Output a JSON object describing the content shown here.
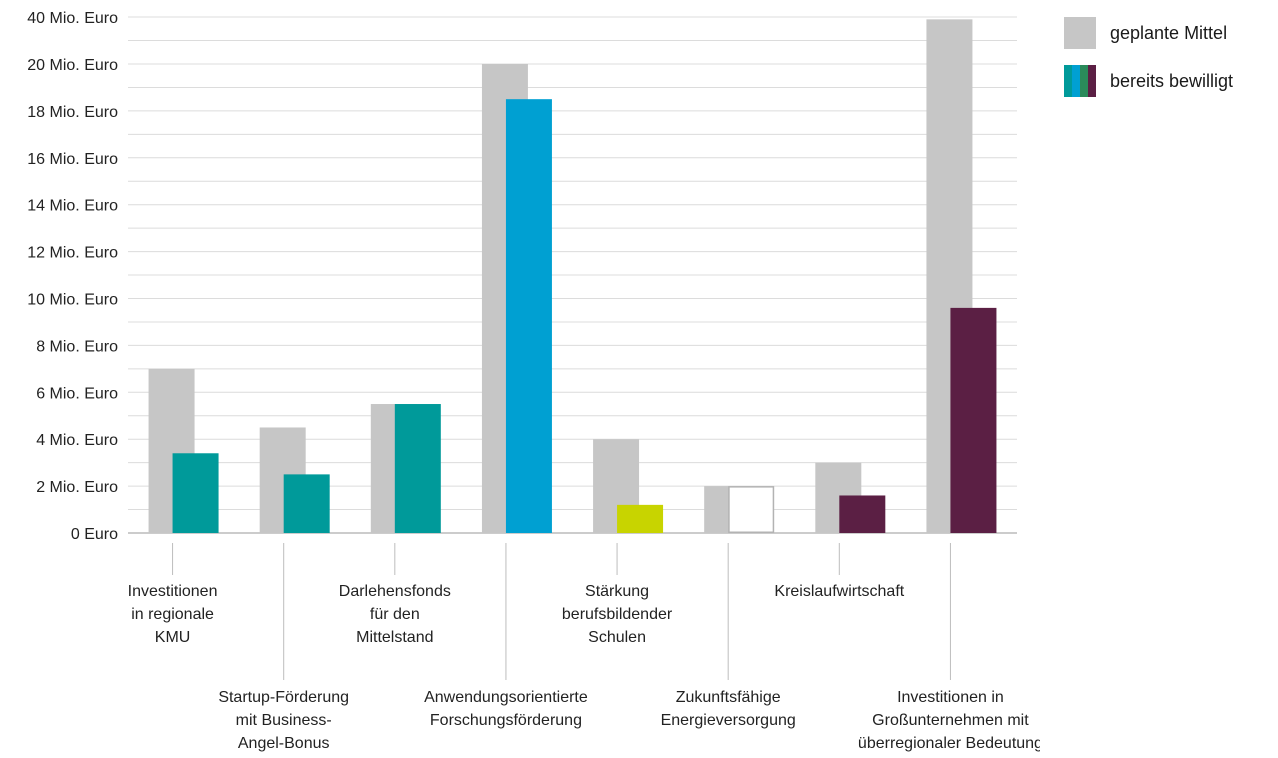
{
  "legend": {
    "items": [
      {
        "label": "geplante Mittel",
        "color": "#c6c6c6"
      },
      {
        "label": "bereits bewilligt",
        "colors": [
          "#009a9a",
          "#00a0d2",
          "#2a8a5a",
          "#5b1f44"
        ]
      }
    ]
  },
  "chart_data": {
    "type": "bar",
    "title": "",
    "xlabel": "",
    "ylabel": "",
    "y_ticks": [
      {
        "value": 0,
        "label": "0 Euro"
      },
      {
        "value": 2,
        "label": "2 Mio. Euro"
      },
      {
        "value": 4,
        "label": "4 Mio. Euro"
      },
      {
        "value": 6,
        "label": "6 Mio. Euro"
      },
      {
        "value": 8,
        "label": "8 Mio. Euro"
      },
      {
        "value": 10,
        "label": "10 Mio. Euro"
      },
      {
        "value": 12,
        "label": "12 Mio. Euro"
      },
      {
        "value": 14,
        "label": "14 Mio. Euro"
      },
      {
        "value": 16,
        "label": "16 Mio. Euro"
      },
      {
        "value": 18,
        "label": "18 Mio. Euro"
      },
      {
        "value": 20,
        "label": "20 Mio. Euro"
      },
      {
        "value": 40,
        "label": "40 Mio. Euro"
      }
    ],
    "categories": [
      {
        "lines": [
          "Investitionen",
          "in regionale",
          "KMU"
        ],
        "row": 0
      },
      {
        "lines": [
          "Startup-Förderung",
          "mit Business-",
          "Angel-Bonus"
        ],
        "row": 1
      },
      {
        "lines": [
          "Darlehensfonds",
          "für den",
          "Mittelstand"
        ],
        "row": 0
      },
      {
        "lines": [
          "Anwendungsorientierte",
          "Forschungsförderung"
        ],
        "row": 1
      },
      {
        "lines": [
          "Stärkung",
          "berufsbildender",
          "Schulen"
        ],
        "row": 0
      },
      {
        "lines": [
          "Zukunftsfähige",
          "Energieversorgung"
        ],
        "row": 1
      },
      {
        "lines": [
          "Kreislaufwirtschaft"
        ],
        "row": 0
      },
      {
        "lines": [
          "Investitionen in",
          "Großunternehmen mit",
          "überregionaler Bedeutung"
        ],
        "row": 1
      }
    ],
    "series": [
      {
        "name": "geplante Mittel",
        "color": "#c6c6c6",
        "values": [
          7,
          4.5,
          5.5,
          20,
          4,
          2,
          3,
          39
        ]
      },
      {
        "name": "bereits bewilligt",
        "colors": [
          "#009a9a",
          "#009a9a",
          "#009a9a",
          "#00a0d2",
          "#c8d400",
          "#ffffff",
          "#5b1f44",
          "#5b1f44"
        ],
        "values": [
          3.4,
          2.5,
          5.5,
          18.5,
          1.2,
          2,
          1.6,
          9.6
        ]
      }
    ],
    "grid": true,
    "legend_position": "top-right"
  }
}
